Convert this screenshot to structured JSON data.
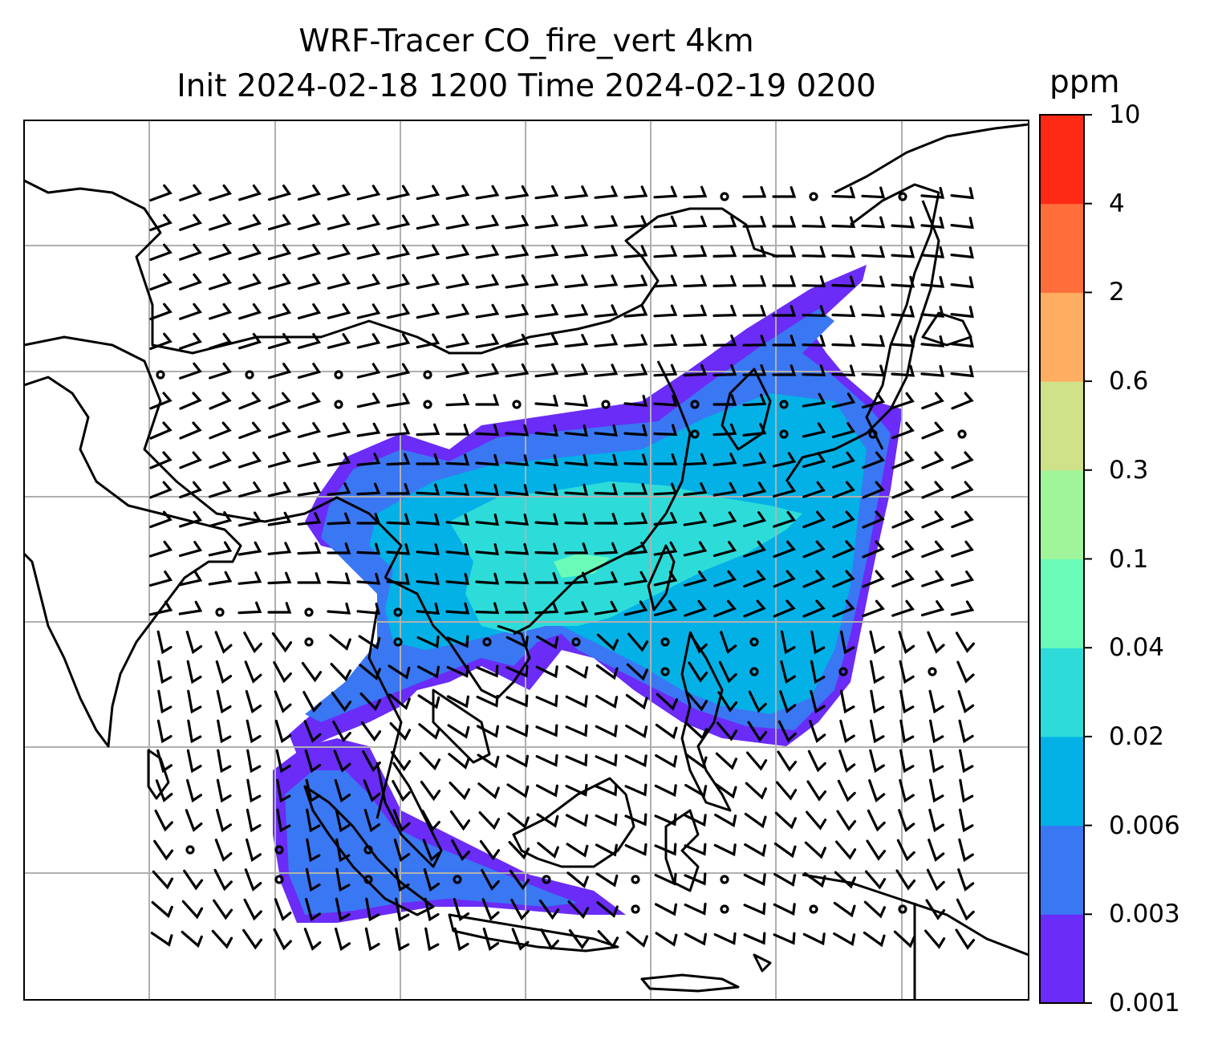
{
  "title": {
    "line1": "WRF-Tracer CO_fire_vert 4km",
    "line2": "Init 2024-02-18 1200 Time 2024-02-19 0200"
  },
  "colorbar": {
    "unit": "ppm",
    "levels": [
      "0.001",
      "0.003",
      "0.006",
      "0.02",
      "0.04",
      "0.1",
      "0.3",
      "0.6",
      "2",
      "4",
      "10"
    ],
    "colors": [
      "#6a2cf6",
      "#3a77f3",
      "#03b1e6",
      "#2ddcd9",
      "#6afbb9",
      "#a0f59b",
      "#cfe189",
      "#ffad60",
      "#ff6e3a",
      "#ff2a15"
    ]
  },
  "map": {
    "projection": "lat-lon grid",
    "gridlines": true,
    "layers": [
      "coastlines",
      "country borders",
      "CO_fire_vert tracer contours",
      "wind barbs"
    ],
    "colors": {
      "grid": "#b0b0b0",
      "coast": "#000000",
      "barb": "#000000"
    }
  }
}
